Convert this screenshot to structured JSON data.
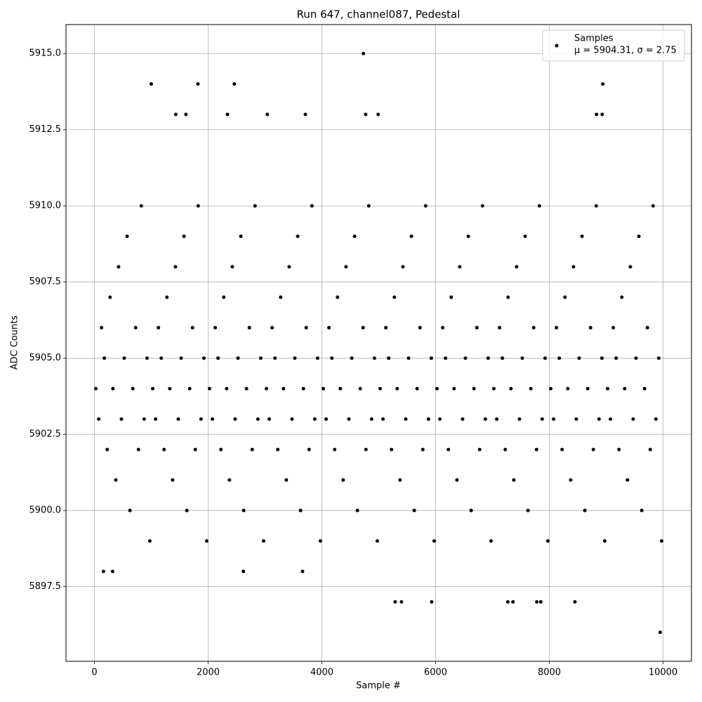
{
  "chart_data": {
    "type": "scatter",
    "title": "Run 647, channel087, Pedestal",
    "x_label": "Sample #",
    "y_label": "ADC Counts",
    "xlim": [
      -500,
      10500
    ],
    "ylim": [
      5895.05,
      5915.95
    ],
    "xticks": [
      0,
      2000,
      4000,
      6000,
      8000,
      10000
    ],
    "yticks": [
      5897.5,
      {
        "value": 5900,
        "label": "5900.0"
      },
      5902.5,
      {
        "value": 5905,
        "label": "5905.0"
      },
      5907.5,
      {
        "value": 5910,
        "label": "5910.0"
      },
      5912.5,
      {
        "value": 5915,
        "label": "5915.0"
      }
    ],
    "grid": true,
    "legend": "upper right",
    "legend_note": "μ = 5904.31, σ = 2.75",
    "series": [
      {
        "name": "Samples",
        "color": "#000000",
        "x": [
          25,
          75,
          125,
          175,
          225,
          275,
          325,
          375,
          425,
          475,
          525,
          575,
          625,
          675,
          725,
          775,
          825,
          875,
          925,
          975,
          1025,
          1075,
          1125,
          1175,
          1225,
          1275,
          1325,
          1375,
          1425,
          1475,
          1525,
          1575,
          1625,
          1675,
          1725,
          1775,
          1825,
          1875,
          1925,
          1975,
          2025,
          2075,
          2125,
          2175,
          2225,
          2275,
          2325,
          2375,
          2425,
          2475,
          2525,
          2575,
          2625,
          2675,
          2725,
          2775,
          2825,
          2875,
          2925,
          2975,
          3025,
          3075,
          3125,
          3175,
          3225,
          3275,
          3325,
          3375,
          3425,
          3475,
          3525,
          3575,
          3625,
          3675,
          3725,
          3775,
          3825,
          3875,
          3925,
          3975,
          4025,
          4075,
          4125,
          4175,
          4225,
          4275,
          4325,
          4375,
          4425,
          4475,
          4525,
          4575,
          4625,
          4675,
          4725,
          4775,
          4825,
          4875,
          4925,
          4975,
          5025,
          5075,
          5125,
          5175,
          5225,
          5275,
          5325,
          5375,
          5425,
          5475,
          5525,
          5575,
          5625,
          5675,
          5725,
          5775,
          5825,
          5875,
          5925,
          5975,
          6025,
          6075,
          6125,
          6175,
          6225,
          6275,
          6325,
          6375,
          6425,
          6475,
          6525,
          6575,
          6625,
          6675,
          6725,
          6775,
          6825,
          6875,
          6925,
          6975,
          7025,
          7075,
          7125,
          7175,
          7225,
          7275,
          7325,
          7375,
          7425,
          7475,
          7525,
          7575,
          7625,
          7675,
          7725,
          7775,
          7825,
          7875,
          7925,
          7975,
          8025,
          8075,
          8125,
          8175,
          8225,
          8275,
          8325,
          8375,
          8425,
          8475,
          8525,
          8575,
          8625,
          8675,
          8725,
          8775,
          8825,
          8875,
          8925,
          8975,
          9025,
          9075,
          9125,
          9175,
          9225,
          9275,
          9325,
          9375,
          9425,
          9475,
          9525,
          9575,
          9625,
          9675,
          9725,
          9775,
          9825,
          9875,
          9925,
          9975,
          4730,
          1000,
          1820,
          2460,
          8940,
          9950,
          5290,
          5400,
          5930,
          7270,
          7360,
          7780,
          7850,
          8450,
          1430,
          1610,
          2340,
          3040,
          3710,
          4770,
          4990,
          8830,
          8930,
          160,
          320,
          2620,
          3660
        ],
        "values": [
          5904,
          5903,
          5906,
          5905,
          5902,
          5907,
          5904,
          5901,
          5908,
          5903,
          5905,
          5909,
          5900,
          5904,
          5906,
          5902,
          5910,
          5903,
          5905,
          5899,
          5904,
          5903,
          5906,
          5905,
          5902,
          5907,
          5904,
          5901,
          5908,
          5903,
          5905,
          5909,
          5900,
          5904,
          5906,
          5902,
          5910,
          5903,
          5905,
          5899,
          5904,
          5903,
          5906,
          5905,
          5902,
          5907,
          5904,
          5901,
          5908,
          5903,
          5905,
          5909,
          5900,
          5904,
          5906,
          5902,
          5910,
          5903,
          5905,
          5899,
          5904,
          5903,
          5906,
          5905,
          5902,
          5907,
          5904,
          5901,
          5908,
          5903,
          5905,
          5909,
          5900,
          5904,
          5906,
          5902,
          5910,
          5903,
          5905,
          5899,
          5904,
          5903,
          5906,
          5905,
          5902,
          5907,
          5904,
          5901,
          5908,
          5903,
          5905,
          5909,
          5900,
          5904,
          5906,
          5902,
          5910,
          5903,
          5905,
          5899,
          5904,
          5903,
          5906,
          5905,
          5902,
          5907,
          5904,
          5901,
          5908,
          5903,
          5905,
          5909,
          5900,
          5904,
          5906,
          5902,
          5910,
          5903,
          5905,
          5899,
          5904,
          5903,
          5906,
          5905,
          5902,
          5907,
          5904,
          5901,
          5908,
          5903,
          5905,
          5909,
          5900,
          5904,
          5906,
          5902,
          5910,
          5903,
          5905,
          5899,
          5904,
          5903,
          5906,
          5905,
          5902,
          5907,
          5904,
          5901,
          5908,
          5903,
          5905,
          5909,
          5900,
          5904,
          5906,
          5902,
          5910,
          5903,
          5905,
          5899,
          5904,
          5903,
          5906,
          5905,
          5902,
          5907,
          5904,
          5901,
          5908,
          5903,
          5905,
          5909,
          5900,
          5904,
          5906,
          5902,
          5910,
          5903,
          5905,
          5899,
          5904,
          5903,
          5906,
          5905,
          5902,
          5907,
          5904,
          5901,
          5908,
          5903,
          5905,
          5909,
          5900,
          5904,
          5906,
          5902,
          5910,
          5903,
          5905,
          5899,
          5915,
          5914,
          5914,
          5914,
          5914,
          5896,
          5897,
          5897,
          5897,
          5897,
          5897,
          5897,
          5897,
          5897,
          5913,
          5913,
          5913,
          5913,
          5913,
          5913,
          5913,
          5913,
          5913,
          5898,
          5898,
          5898,
          5898
        ]
      }
    ]
  }
}
